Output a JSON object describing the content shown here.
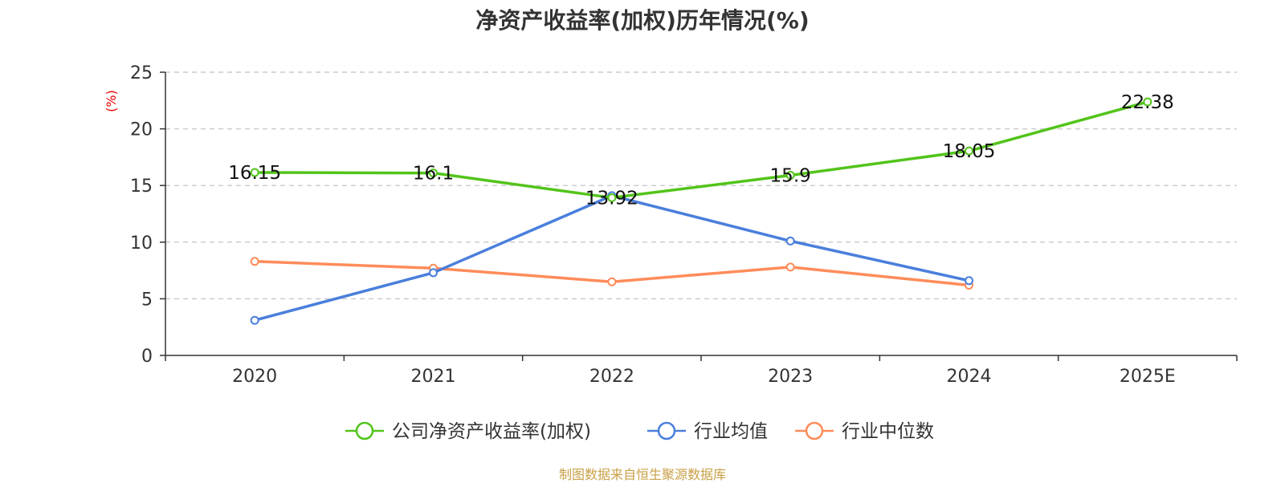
{
  "chart_data": {
    "type": "line",
    "title": "净资产收益率(加权)历年情况(%)",
    "ylabel": "(%)",
    "xlabel": "",
    "categories": [
      "2020",
      "2021",
      "2022",
      "2023",
      "2024",
      "2025E"
    ],
    "ylim": [
      0,
      25
    ],
    "yticks": [
      0,
      5,
      10,
      15,
      20,
      25
    ],
    "grid": true,
    "legend_position": "bottom-center",
    "series": [
      {
        "name": "公司净资产收益率(加权)",
        "color": "#52c41a",
        "values": [
          16.15,
          16.1,
          13.92,
          15.9,
          18.05,
          22.38
        ],
        "data_labels": [
          "16.15",
          "16.1",
          "13.92",
          "15.9",
          "18.05",
          "22.38"
        ]
      },
      {
        "name": "行业均值",
        "color": "#4a7fdc",
        "values": [
          3.1,
          7.3,
          14.1,
          10.1,
          6.6,
          null
        ]
      },
      {
        "name": "行业中位数",
        "color": "#ff8c5a",
        "values": [
          8.3,
          7.7,
          6.5,
          7.8,
          6.2,
          null
        ]
      }
    ],
    "unit_color": "#e60000"
  },
  "source_note": "制图数据来自恒生聚源数据库"
}
